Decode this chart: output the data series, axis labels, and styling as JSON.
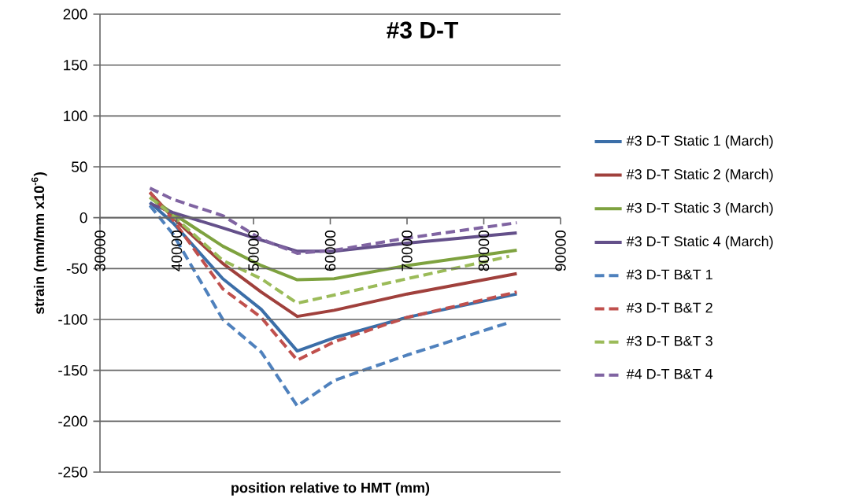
{
  "chart_data": {
    "type": "line",
    "title": "#3 D-T",
    "xlabel": "position relative to HMT (mm)",
    "ylabel": "strain (mm/mm x10$^{-6}$)",
    "x": [
      36500,
      39500,
      46000,
      51000,
      55700,
      60500,
      70000,
      84300
    ],
    "series": [
      {
        "name": "#3 D-T Static 1 (March)",
        "color": "#3b6ea8",
        "line_style": "solid",
        "values": [
          15,
          -5,
          -60,
          -90,
          -131,
          -118,
          -98,
          -75
        ]
      },
      {
        "name": "#3 D-T Static 2 (March)",
        "color": "#a0403c",
        "line_style": "solid",
        "values": [
          25,
          0,
          -45,
          -73,
          -97,
          -91,
          -75,
          -55
        ]
      },
      {
        "name": "#3 D-T Static 3 (March)",
        "color": "#7ea23f",
        "line_style": "solid",
        "values": [
          20,
          4,
          -28,
          -47,
          -61,
          -60,
          -47,
          -32
        ]
      },
      {
        "name": "#3 D-T Static 4 (March)",
        "color": "#64508a",
        "line_style": "solid",
        "values": [
          14,
          5,
          -10,
          -22,
          -33,
          -33,
          -25,
          -15
        ]
      },
      {
        "name": "#3 D-T B&T 1",
        "color": "#4f81bd",
        "line_style": "dashed",
        "x": [
          36500,
          39500,
          46000,
          51000,
          55700,
          60500,
          70000,
          83300
        ],
        "values": [
          12,
          -16,
          -100,
          -132,
          -185,
          -160,
          -135,
          -103
        ]
      },
      {
        "name": "#3 D-T B&T 2",
        "color": "#c0504d",
        "line_style": "dashed",
        "values": [
          25,
          -2,
          -70,
          -98,
          -140,
          -122,
          -98,
          -73
        ]
      },
      {
        "name": "#3 D-T B&T 3",
        "color": "#9bbb59",
        "line_style": "dashed",
        "x": [
          36500,
          39500,
          46000,
          51000,
          55700,
          60500,
          70000,
          83300
        ],
        "values": [
          20,
          2,
          -42,
          -60,
          -84,
          -76,
          -60,
          -38
        ]
      },
      {
        "name": "#4 D-T B&T 4",
        "color": "#8064a2",
        "line_style": "dashed",
        "values": [
          29,
          18,
          2,
          -21,
          -35,
          -32,
          -20,
          -5
        ]
      }
    ],
    "xlim": [
      30000,
      90000
    ],
    "xticks": [
      30000,
      40000,
      50000,
      60000,
      70000,
      80000,
      90000
    ],
    "ylim": [
      -250,
      200
    ],
    "yticks": [
      -250,
      -200,
      -150,
      -100,
      -50,
      0,
      50,
      100,
      150,
      200
    ],
    "grid": "y",
    "legend": "right"
  }
}
